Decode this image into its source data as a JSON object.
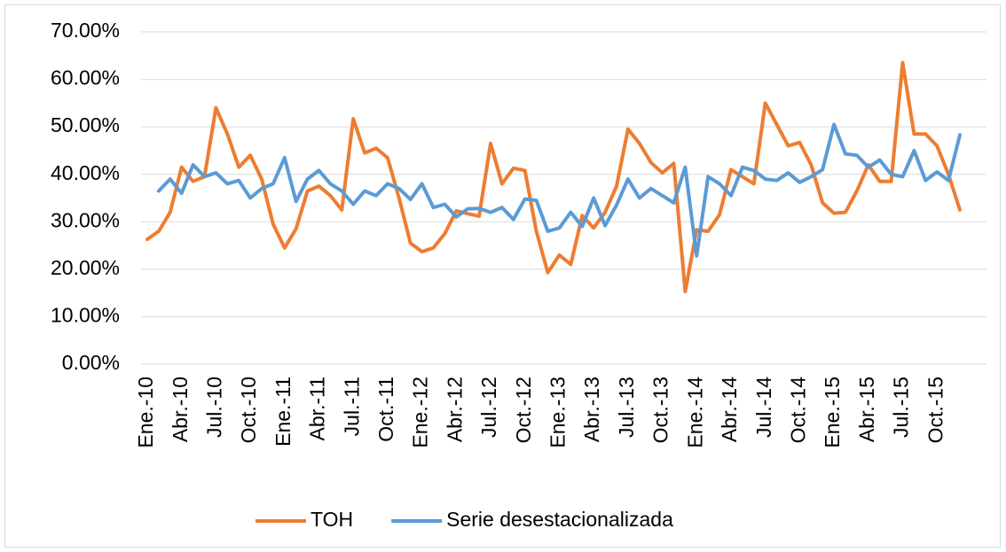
{
  "chart_data": {
    "type": "line",
    "categories": [
      "Ene.-10",
      null,
      null,
      "Abr.-10",
      null,
      null,
      "Jul.-10",
      null,
      null,
      "Oct.-10",
      null,
      null,
      "Ene.-11",
      null,
      null,
      "Abr.-11",
      null,
      null,
      "Jul.-11",
      null,
      null,
      "Oct.-11",
      null,
      null,
      "Ene.-12",
      null,
      null,
      "Abr.-12",
      null,
      null,
      "Jul.-12",
      null,
      null,
      "Oct.-12",
      null,
      null,
      "Ene.-13",
      null,
      null,
      "Abr.-13",
      null,
      null,
      "Jul.-13",
      null,
      null,
      "Oct.-13",
      null,
      null,
      "Ene.-14",
      null,
      null,
      "Abr.-14",
      null,
      null,
      "Jul.-14",
      null,
      null,
      "Oct.-14",
      null,
      null,
      "Ene.-15",
      null,
      null,
      "Abr.-15",
      null,
      null,
      "Jul.-15",
      null,
      null,
      "Oct.-15",
      null,
      null
    ],
    "series": [
      {
        "name": "TOH",
        "color": "#ed7d31",
        "values": [
          26.3,
          28,
          32,
          41.5,
          38.5,
          39.5,
          54,
          48.5,
          41.5,
          44,
          39,
          29.5,
          24.5,
          28.5,
          36.5,
          37.5,
          35.5,
          32.5,
          51.7,
          44.5,
          45.5,
          43.5,
          35,
          25.5,
          23.7,
          24.5,
          27.5,
          32.3,
          31.7,
          31.2,
          46.5,
          38,
          41.3,
          40.8,
          28,
          19.3,
          23,
          21,
          31.3,
          28.7,
          32,
          37.5,
          49.5,
          46.5,
          42.5,
          40.3,
          42.3,
          15.3,
          28.3,
          28,
          31.5,
          41,
          39.5,
          38,
          55,
          50.5,
          46,
          46.7,
          42,
          34,
          31.8,
          32,
          36.5,
          42,
          38.5,
          38.5,
          63.5,
          48.5,
          48.5,
          46,
          40,
          32.5
        ]
      },
      {
        "name": "Serie desestacionalizada",
        "color": "#5b9bd5",
        "values": [
          null,
          36.5,
          39,
          36,
          42,
          39.5,
          40.3,
          38,
          38.7,
          35,
          37,
          38,
          43.5,
          34.3,
          39,
          40.8,
          38,
          36.5,
          33.7,
          36.5,
          35.5,
          38,
          37,
          34.7,
          38,
          33,
          33.7,
          31,
          32.7,
          32.8,
          32,
          33,
          30.5,
          34.8,
          34.5,
          28,
          28.7,
          32,
          29,
          35,
          29.2,
          33.5,
          39,
          35,
          37,
          35.5,
          34,
          41.5,
          22.8,
          39.5,
          38,
          35.5,
          41.5,
          40.8,
          39,
          38.7,
          40.3,
          38.3,
          39.5,
          41,
          50.5,
          44.3,
          44,
          41.5,
          43,
          40,
          39.5,
          45,
          38.7,
          40.5,
          38.7,
          48.3
        ]
      }
    ],
    "ylim": [
      0,
      70
    ],
    "yticks": [
      {
        "value": 0,
        "label": "0.00%"
      },
      {
        "value": 10,
        "label": "10.00%"
      },
      {
        "value": 20,
        "label": "20.00%"
      },
      {
        "value": 30,
        "label": "30.00%"
      },
      {
        "value": 40,
        "label": "40.00%"
      },
      {
        "value": 50,
        "label": "50.00%"
      },
      {
        "value": 60,
        "label": "60.00%"
      },
      {
        "value": 70,
        "label": "70.00%"
      }
    ],
    "grid": true,
    "legend": "bottom"
  }
}
